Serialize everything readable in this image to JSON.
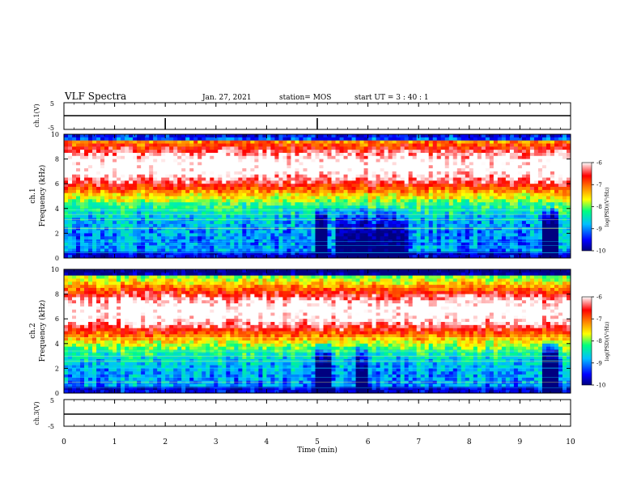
{
  "header": {
    "title": "VLF Spectra",
    "date": "Jan. 27, 2021",
    "station": "station= MOS",
    "start": "start  UT =   3 : 40 : 1"
  },
  "colors": {
    "background": "#ffffff",
    "axis": "#000000",
    "colormap": [
      "#000080",
      "#0000ff",
      "#00bfff",
      "#00ff7f",
      "#ffff00",
      "#ff8000",
      "#ff0000",
      "#ffffff"
    ]
  },
  "chart_data": [
    {
      "type": "line",
      "ylabel": "ch.1(V)",
      "yticks": [
        "5",
        "-5"
      ],
      "ylim": [
        -5,
        5
      ],
      "baseline": 0
    },
    {
      "type": "heatmap",
      "ylabel": "ch.1\nFrequency (kHz)",
      "yticks": [
        "10",
        "8",
        "6",
        "4",
        "2",
        "0"
      ],
      "ylim": [
        0,
        10
      ],
      "colorbar": {
        "label": "log(PSD)(V²/Hz)",
        "ticks": [
          "-6",
          "-7",
          "-8",
          "-9",
          "-10"
        ],
        "range": [
          -10,
          -6
        ]
      }
    },
    {
      "type": "heatmap",
      "ylabel": "ch.2\nFrequency (kHz)",
      "yticks": [
        "10",
        "8",
        "6",
        "4",
        "2",
        "0"
      ],
      "ylim": [
        0,
        10
      ],
      "colorbar": {
        "label": "log(PSD)(V²/Hz)",
        "ticks": [
          "-6",
          "-7",
          "-8",
          "-9",
          "-10"
        ],
        "range": [
          -10,
          -6
        ]
      }
    },
    {
      "type": "line",
      "ylabel": "ch.3(V)",
      "yticks": [
        "5",
        "-5"
      ],
      "ylim": [
        -5,
        5
      ],
      "baseline": 0
    }
  ],
  "xaxis": {
    "label": "Time  (min)",
    "ticks": [
      "0",
      "1",
      "2",
      "3",
      "4",
      "5",
      "6",
      "7",
      "8",
      "9",
      "10"
    ],
    "xlim": [
      0,
      10
    ]
  }
}
